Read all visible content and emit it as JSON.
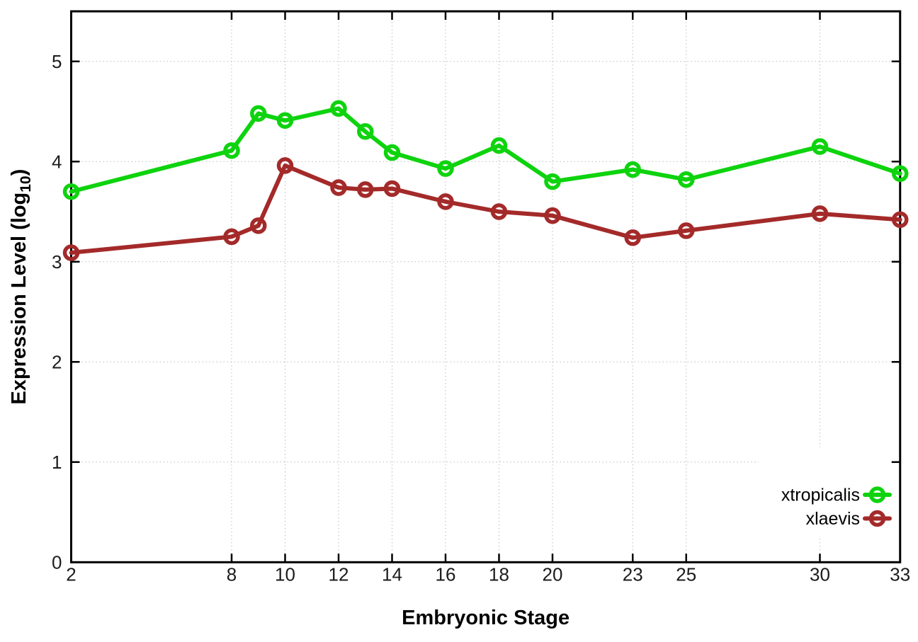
{
  "chart_data": {
    "type": "line",
    "title": "",
    "xlabel": "Embryonic Stage",
    "ylabel": "Expression Level (log10)",
    "ylabel_prefix": "Expression Level (log",
    "ylabel_subscript": "10",
    "ylabel_suffix": ")",
    "x": [
      2,
      8,
      9,
      10,
      12,
      13,
      14,
      16,
      18,
      20,
      23,
      25,
      30,
      33
    ],
    "series": [
      {
        "name": "xtropicalis",
        "color": "#0ed30e",
        "values": [
          3.7,
          4.11,
          4.48,
          4.41,
          4.53,
          4.3,
          4.09,
          3.93,
          4.16,
          3.8,
          3.92,
          3.82,
          4.15,
          3.88
        ]
      },
      {
        "name": "xlaevis",
        "color": "#a42a2a",
        "values": [
          3.09,
          3.25,
          3.36,
          3.96,
          3.74,
          3.72,
          3.73,
          3.6,
          3.5,
          3.46,
          3.24,
          3.31,
          3.48,
          3.42
        ]
      }
    ],
    "xlim": [
      2,
      33
    ],
    "ylim": [
      0,
      5.5
    ],
    "xticks": [
      2,
      8,
      10,
      12,
      14,
      16,
      18,
      20,
      23,
      25,
      30,
      33
    ],
    "yticks": [
      0,
      1,
      2,
      3,
      4,
      5
    ],
    "grid": true,
    "legend_position": "inside-right-lower",
    "marker": "open-circle"
  },
  "style": {
    "background_color": "#ffffff",
    "border_color": "#000000",
    "grid_color": "#bcbcbc",
    "tick_label_color": "#1c1c1c"
  }
}
